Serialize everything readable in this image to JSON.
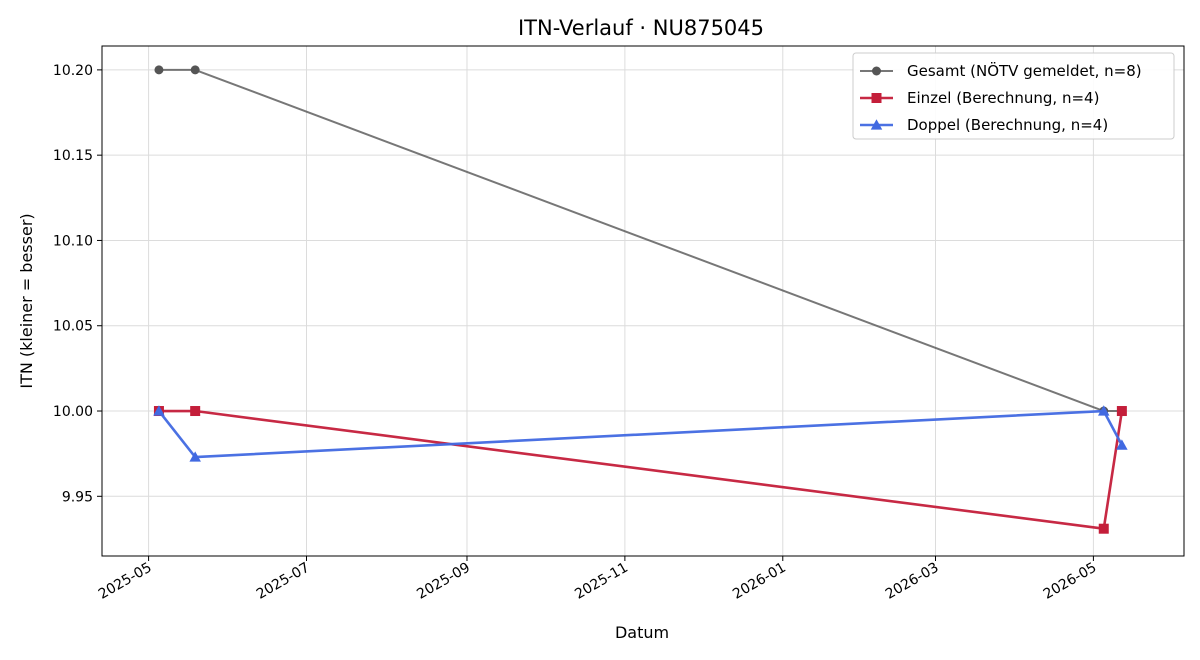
{
  "chart_data": {
    "type": "line",
    "title": "ITN-Verlauf · NU875045",
    "xlabel": "Datum",
    "ylabel": "ITN  (kleiner = besser)",
    "x_type": "date",
    "xlim": [
      "2025-04-13",
      "2026-06-05"
    ],
    "ylim": [
      9.915,
      10.214
    ],
    "x_ticks": [
      "2025-05-01",
      "2025-07-01",
      "2025-09-01",
      "2025-11-01",
      "2026-01-01",
      "2026-03-01",
      "2026-05-01"
    ],
    "x_tick_labels": [
      "2025-05",
      "2025-07",
      "2025-09",
      "2025-11",
      "2026-01",
      "2026-03",
      "2026-05"
    ],
    "y_ticks": [
      9.95,
      10.0,
      10.05,
      10.1,
      10.15,
      10.2
    ],
    "y_tick_labels": [
      "9.95",
      "10.00",
      "10.05",
      "10.10",
      "10.15",
      "10.20"
    ],
    "grid": true,
    "legend_position": "top-right",
    "series": [
      {
        "name": "Gesamt (NÖTV gemeldet, n=8)",
        "color": "#555555",
        "marker": "circle",
        "points": [
          {
            "x": "2025-05-05",
            "y": 10.2
          },
          {
            "x": "2025-05-19",
            "y": 10.2
          },
          {
            "x": "2026-05-05",
            "y": 10.0
          },
          {
            "x": "2026-05-12",
            "y": 10.0
          }
        ]
      },
      {
        "name": "Einzel (Berechnung, n=4)",
        "color": "#c41e3a",
        "marker": "square",
        "points": [
          {
            "x": "2025-05-05",
            "y": 10.0
          },
          {
            "x": "2025-05-19",
            "y": 10.0
          },
          {
            "x": "2026-05-05",
            "y": 9.931
          },
          {
            "x": "2026-05-12",
            "y": 10.0
          }
        ]
      },
      {
        "name": "Doppel (Berechnung, n=4)",
        "color": "#4169e1",
        "marker": "triangle",
        "points": [
          {
            "x": "2025-05-05",
            "y": 10.0
          },
          {
            "x": "2025-05-19",
            "y": 9.973
          },
          {
            "x": "2026-05-05",
            "y": 10.0
          },
          {
            "x": "2026-05-12",
            "y": 9.98
          }
        ]
      }
    ]
  }
}
